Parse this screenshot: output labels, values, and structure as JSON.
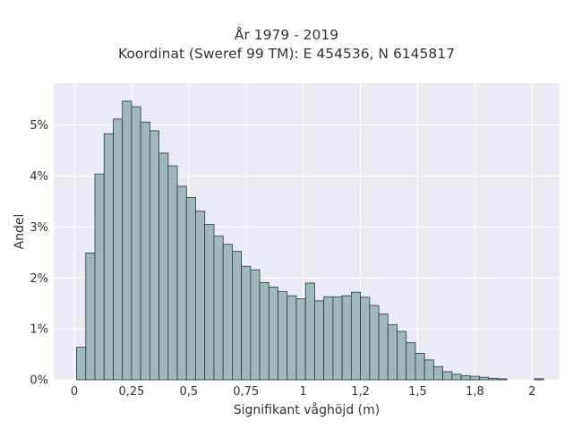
{
  "chart_data": {
    "type": "bar",
    "title": "År 1979 - 2019",
    "subtitle": "Koordinat (Sweref 99 TM): E 454536, N 6145817",
    "xlabel": "Signifikant våghöjd (m)",
    "ylabel": "Andel",
    "xlim": [
      -0.09,
      2.12
    ],
    "ylim": [
      0,
      0.0582
    ],
    "xticks": [
      0,
      0.25,
      0.5,
      0.75,
      1,
      1.25,
      1.5,
      1.75,
      2
    ],
    "xtick_labels": [
      "0",
      "0,25",
      "0,5",
      "0,75",
      "1",
      "1,2",
      "1,5",
      "1,8",
      "2"
    ],
    "yticks": [
      0,
      0.01,
      0.02,
      0.03,
      0.04,
      0.05
    ],
    "ytick_labels": [
      "0%",
      "1%",
      "2%",
      "3%",
      "4%",
      "5%"
    ],
    "bin_start": 0.01,
    "bin_width": 0.04,
    "values": [
      0.0064,
      0.0249,
      0.0404,
      0.0483,
      0.0512,
      0.0547,
      0.0536,
      0.0506,
      0.0489,
      0.0445,
      0.042,
      0.038,
      0.0358,
      0.0331,
      0.0305,
      0.0282,
      0.0266,
      0.0252,
      0.0223,
      0.0216,
      0.0191,
      0.0182,
      0.0173,
      0.0165,
      0.0159,
      0.019,
      0.0155,
      0.0163,
      0.0163,
      0.0165,
      0.0172,
      0.0162,
      0.0146,
      0.0129,
      0.0108,
      0.0095,
      0.0073,
      0.0052,
      0.0039,
      0.0026,
      0.0016,
      0.0011,
      0.0008,
      0.0007,
      0.0005,
      0.0003,
      0.0002,
      0.0,
      0.0,
      0.0,
      0.0002
    ],
    "grid": true,
    "legend": "none",
    "bar_color": "#9fb8b8",
    "edge_color": "#2b3a3a",
    "plot_background": "#eaeaf2",
    "grid_color": "#ffffff"
  }
}
